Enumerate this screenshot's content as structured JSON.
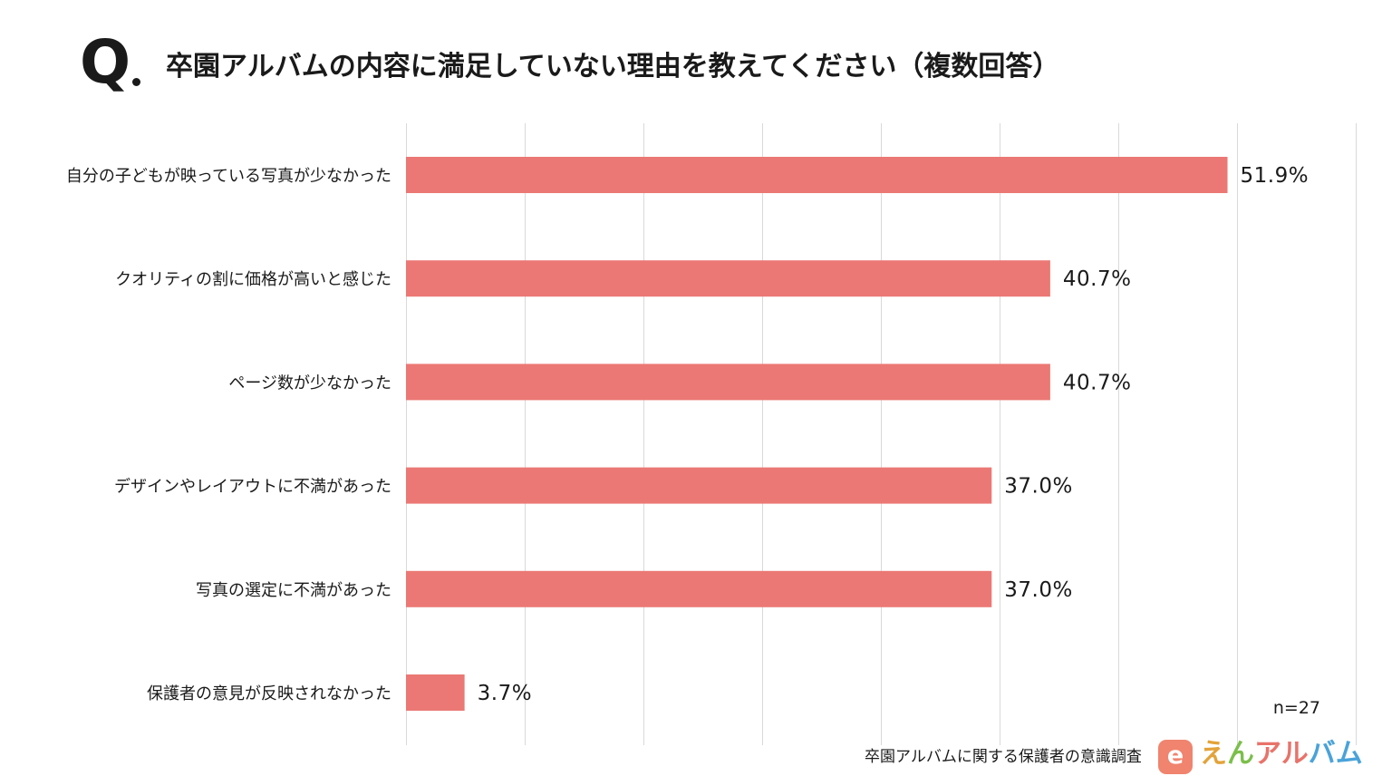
{
  "header": {
    "q_mark": "Q",
    "title": "卒園アルバムの内容に満足していない理由を教えてください（複数回答）"
  },
  "chart_data": {
    "type": "bar",
    "orientation": "horizontal",
    "title": "卒園アルバムの内容に満足していない理由を教えてください（複数回答）",
    "categories": [
      "自分の子どもが映っている写真が少なかった",
      "クオリティの割に価格が高いと感じた",
      "ページ数が少なかった",
      "デザインやレイアウトに不満があった",
      "写真の選定に不満があった",
      "保護者の意見が反映されなかった"
    ],
    "values": [
      51.9,
      40.7,
      40.7,
      37.0,
      37.0,
      3.7
    ],
    "value_labels": [
      "51.9%",
      "40.7%",
      "40.7%",
      "37.0%",
      "37.0%",
      "3.7%"
    ],
    "xlim": [
      0,
      60
    ],
    "grid": true,
    "bar_color": "#eb7874"
  },
  "sample_size": "n=27",
  "footer": {
    "source": "卒園アルバムに関する保護者の意識調査",
    "logo_icon_letter": "e",
    "logo_chars": [
      "え",
      "ん",
      "ア",
      "ル",
      "バ",
      "ム"
    ]
  },
  "colors": {
    "bar": "#eb7874",
    "grid": "#d9d9d9",
    "text": "#1a1a1a"
  }
}
